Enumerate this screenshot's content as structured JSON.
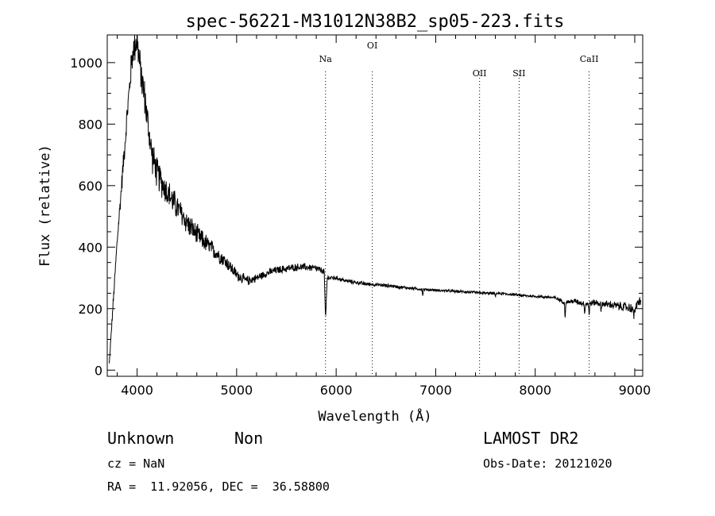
{
  "chart_data": {
    "type": "line",
    "title": "spec-56221-M31012N38B2_sp05-223.fits",
    "xlabel": "Wavelength (Å)",
    "ylabel": "Flux (relative)",
    "xlim": [
      3700,
      9080
    ],
    "ylim": [
      -20,
      1090
    ],
    "xticks": [
      4000,
      5000,
      6000,
      7000,
      8000,
      9000
    ],
    "yticks": [
      0,
      200,
      400,
      600,
      800,
      1000
    ],
    "grid": false,
    "line_color": "#000000",
    "spectral_lines": [
      {
        "label": "Na",
        "wavelength": 5893
      },
      {
        "label": "OI",
        "wavelength": 6363
      },
      {
        "label": "OII",
        "wavelength": 7441
      },
      {
        "label": "SII",
        "wavelength": 7838
      },
      {
        "label": "CaII",
        "wavelength": 8542
      }
    ],
    "series": [
      {
        "anchor_x": [
          3720,
          3800,
          3900,
          3950,
          3980,
          4000,
          4030,
          4060,
          4080,
          4100,
          4150,
          4200,
          4300,
          4400,
          4500,
          4600,
          4700,
          4800,
          4900,
          5000,
          5100,
          5200,
          5300,
          5400,
          5500,
          5600,
          5700,
          5800,
          5880,
          5893,
          5910,
          6000,
          6100,
          6200,
          6300,
          6400,
          6500,
          6600,
          6700,
          6800,
          6900,
          7000,
          7100,
          7200,
          7300,
          7400,
          7500,
          7600,
          7700,
          7800,
          7900,
          8000,
          8100,
          8200,
          8300,
          8400,
          8500,
          8600,
          8700,
          8800,
          8900,
          9000,
          9060
        ],
        "anchor_y": [
          20,
          420,
          830,
          1020,
          1060,
          1075,
          980,
          920,
          880,
          820,
          700,
          640,
          580,
          530,
          480,
          440,
          410,
          380,
          350,
          310,
          290,
          300,
          315,
          325,
          330,
          335,
          335,
          330,
          320,
          160,
          300,
          300,
          290,
          285,
          280,
          278,
          275,
          272,
          268,
          265,
          262,
          260,
          258,
          256,
          255,
          252,
          250,
          250,
          248,
          245,
          242,
          240,
          238,
          235,
          220,
          225,
          215,
          220,
          215,
          210,
          205,
          200,
          230
        ],
        "noise_profile_x": [
          3720,
          4000,
          4300,
          4800,
          5200,
          5800,
          6000,
          7000,
          8000,
          8300,
          9060
        ],
        "noise_profile_amp": [
          10,
          70,
          55,
          30,
          15,
          14,
          8,
          5,
          5,
          8,
          20
        ],
        "absorption_features": [
          {
            "x": 6870,
            "depth": 20
          },
          {
            "x": 7600,
            "depth": 12
          },
          {
            "x": 8300,
            "depth": 50
          },
          {
            "x": 8498,
            "depth": 30
          },
          {
            "x": 8542,
            "depth": 40
          },
          {
            "x": 8662,
            "depth": 35
          },
          {
            "x": 8990,
            "depth": 40
          }
        ]
      }
    ]
  },
  "footer": {
    "object_class": "Unknown",
    "object_subclass": "Non",
    "survey": "LAMOST DR2",
    "redshift": "cz = NaN",
    "obs_date": "Obs-Date: 20121020",
    "coords": "RA =  11.92056, DEC =  36.58800"
  }
}
